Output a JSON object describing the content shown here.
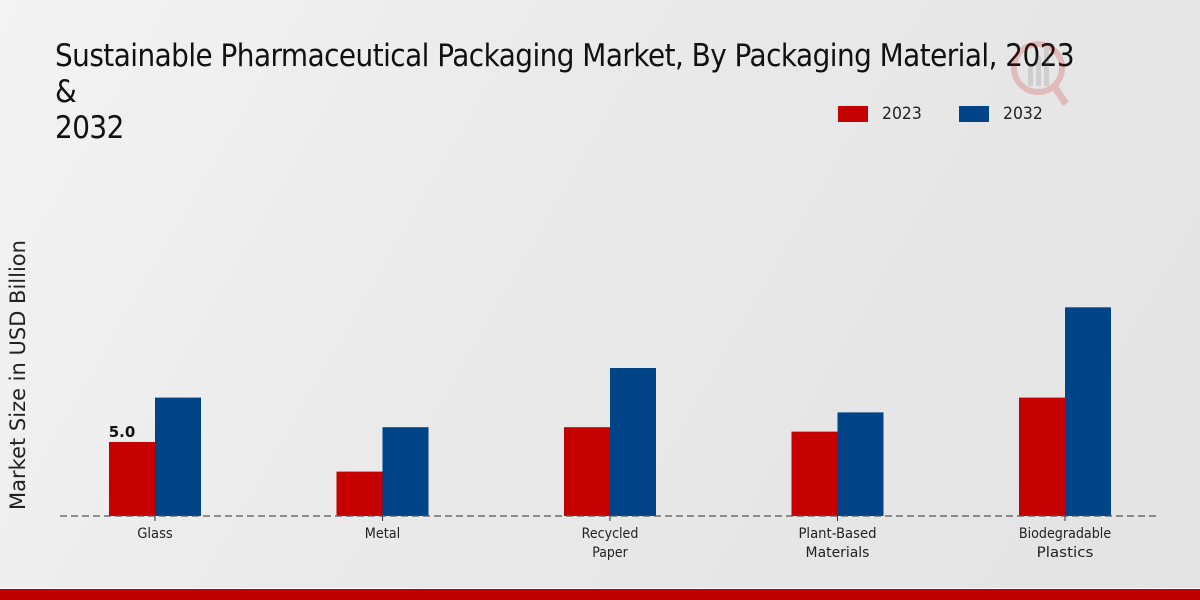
{
  "chart_data": {
    "type": "bar",
    "title": "Sustainable Pharmaceutical Packaging Market, By Packaging Material, 2023 & 2032",
    "title_display": "Sustainable Pharmaceutical Packaging Market, By Packaging Material, 2023 &\n2032",
    "xlabel": "",
    "ylabel": "Market Size in USD Billion",
    "categories": [
      [
        "Glass"
      ],
      [
        "Metal"
      ],
      [
        "Recycled",
        "Paper"
      ],
      [
        "Plant-Based",
        "Materials"
      ],
      [
        "Biodegradable",
        "Plastics"
      ]
    ],
    "series": [
      {
        "name": "2023",
        "color": "#c40000",
        "values": [
          5.0,
          3.0,
          6.0,
          5.7,
          8.0
        ]
      },
      {
        "name": "2032",
        "color": "#004488",
        "values": [
          8.0,
          6.0,
          10.0,
          7.0,
          14.1
        ]
      }
    ],
    "data_labels": [
      {
        "series": 0,
        "index": 0,
        "text": "5.0"
      }
    ],
    "ylim": [
      0,
      15
    ],
    "grid": false,
    "legend": "top-right",
    "baseline_style": "dashed"
  },
  "footer": {
    "accent_color": "#c00000"
  }
}
